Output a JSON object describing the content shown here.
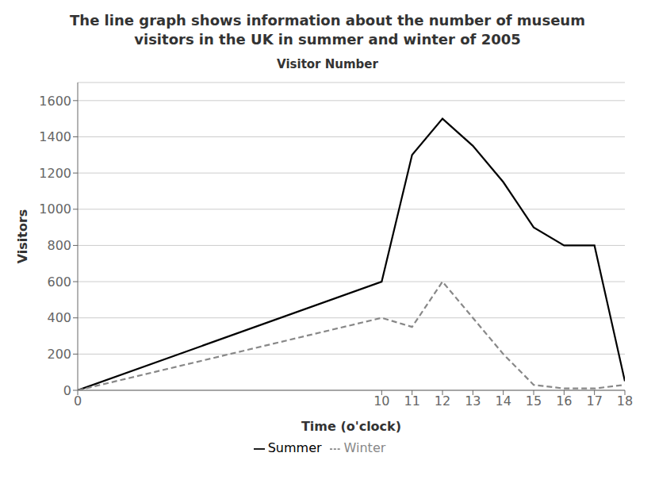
{
  "chart_data": {
    "type": "line",
    "title": "The line graph shows information about the number of museum\nvisitors in the UK in summer and winter of 2005",
    "subtitle": "Visitor Number",
    "x_label": "Time (o'clock)",
    "y_label": "Visitors",
    "x": [
      0,
      10,
      11,
      12,
      13,
      14,
      15,
      16,
      17,
      18
    ],
    "series": [
      {
        "name": "Summer",
        "color": "#000000",
        "line_style": "solid",
        "values": [
          0,
          600,
          1300,
          1500,
          1350,
          1150,
          900,
          800,
          800,
          50
        ]
      },
      {
        "name": "Winter",
        "color": "#888888",
        "line_style": "dashed",
        "values": [
          0,
          400,
          350,
          600,
          400,
          200,
          30,
          10,
          10,
          30
        ]
      }
    ],
    "xlim": [
      0,
      18
    ],
    "xticks": [
      0,
      10,
      11,
      12,
      13,
      14,
      15,
      16,
      17,
      18
    ],
    "ylim": [
      0,
      1700
    ],
    "yticks": [
      0,
      200,
      400,
      600,
      800,
      1000,
      1200,
      1400,
      1600
    ],
    "grid": true,
    "legend": "bottom"
  }
}
